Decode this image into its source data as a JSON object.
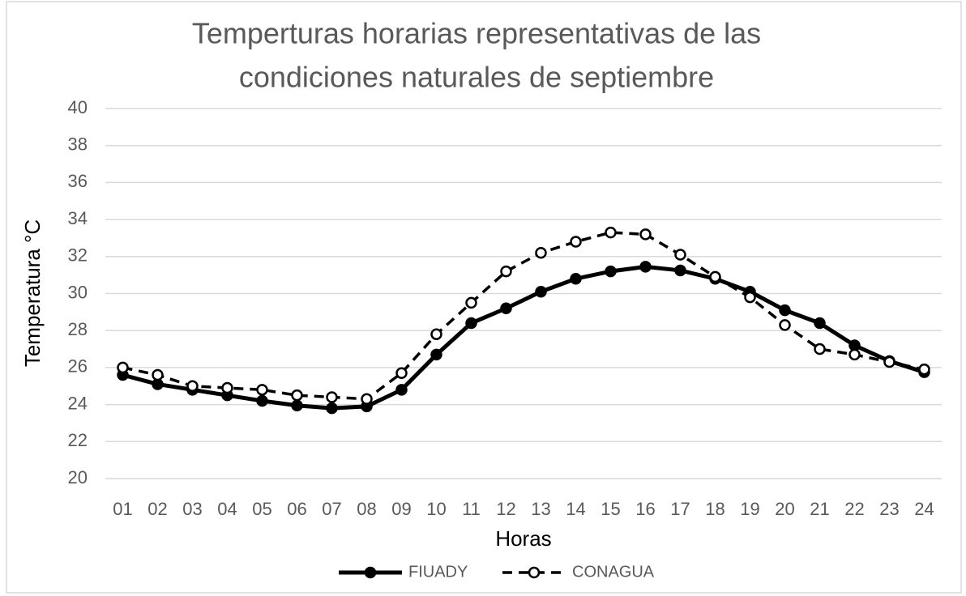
{
  "chart_data": {
    "type": "line",
    "title": [
      "Temperturas horarias representativas de las",
      "condiciones naturales de septiembre"
    ],
    "x_label": "Horas",
    "y_label": "Temperatura °C",
    "categories": [
      "01",
      "02",
      "03",
      "04",
      "05",
      "06",
      "07",
      "08",
      "09",
      "10",
      "11",
      "12",
      "13",
      "14",
      "15",
      "16",
      "17",
      "18",
      "19",
      "20",
      "21",
      "22",
      "23",
      "24"
    ],
    "series": [
      {
        "name": "FIUADY",
        "color": "#000000",
        "dash": false,
        "values": [
          25.6,
          25.1,
          24.8,
          24.5,
          24.2,
          23.95,
          23.8,
          23.9,
          24.8,
          26.7,
          28.4,
          29.2,
          30.1,
          30.8,
          31.2,
          31.45,
          31.25,
          30.8,
          30.1,
          29.1,
          28.4,
          27.2,
          26.35,
          25.75
        ]
      },
      {
        "name": "CONAGUA",
        "color": "#000000",
        "dash": true,
        "values": [
          26.0,
          25.6,
          25.0,
          24.9,
          24.8,
          24.5,
          24.4,
          24.3,
          25.7,
          27.8,
          29.5,
          31.2,
          32.2,
          32.8,
          33.3,
          33.2,
          32.1,
          30.9,
          29.8,
          28.3,
          27.0,
          26.7,
          26.3,
          25.9
        ]
      }
    ],
    "ylim": [
      20,
      40
    ],
    "yticks": [
      20,
      22,
      24,
      26,
      28,
      30,
      32,
      34,
      36,
      38,
      40
    ],
    "grid": true,
    "legend": "bottom"
  }
}
